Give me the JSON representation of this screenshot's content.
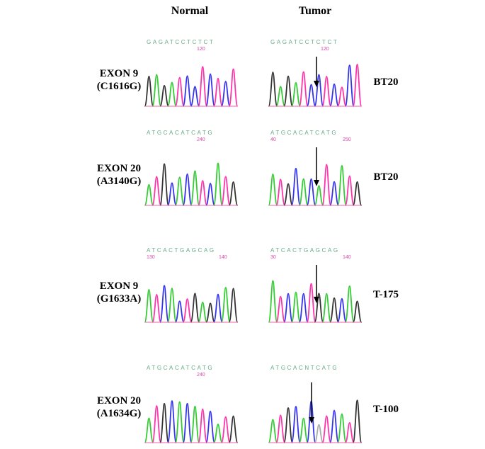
{
  "header": {
    "normal": "Normal",
    "tumor": "Tumor"
  },
  "rows": [
    {
      "exon": "EXON 9",
      "mutation": "(C1616G)",
      "sample": "BT20",
      "normal": {
        "sequence": "GAGATCCTCTCT",
        "positions": [
          "120"
        ]
      },
      "tumor": {
        "sequence": "GAGATCCTCTCT",
        "positions": [
          "120"
        ]
      }
    },
    {
      "exon": "EXON 20",
      "mutation": "(A3140G)",
      "sample": "BT20",
      "normal": {
        "sequence": "ATGCACATCATG",
        "positions": [
          "240"
        ]
      },
      "tumor": {
        "sequence": "ATGCACATCATG",
        "positions": [
          "40",
          "250"
        ]
      }
    },
    {
      "exon": "EXON 9",
      "mutation": "(G1633A)",
      "sample": "T-175",
      "normal": {
        "sequence": "ATCACTGAGCAG",
        "positions": [
          "130",
          "140"
        ]
      },
      "tumor": {
        "sequence": "ATCACTGAGCAG",
        "positions": [
          "30",
          "140"
        ]
      }
    },
    {
      "exon": "EXON 20",
      "mutation": "(A1634G)",
      "sample": "T-100",
      "normal": {
        "sequence": "ATGCACATCATG",
        "positions": [
          "240"
        ]
      },
      "tumor": {
        "sequence": "ATGCACNTCATG",
        "positions": []
      }
    }
  ]
}
